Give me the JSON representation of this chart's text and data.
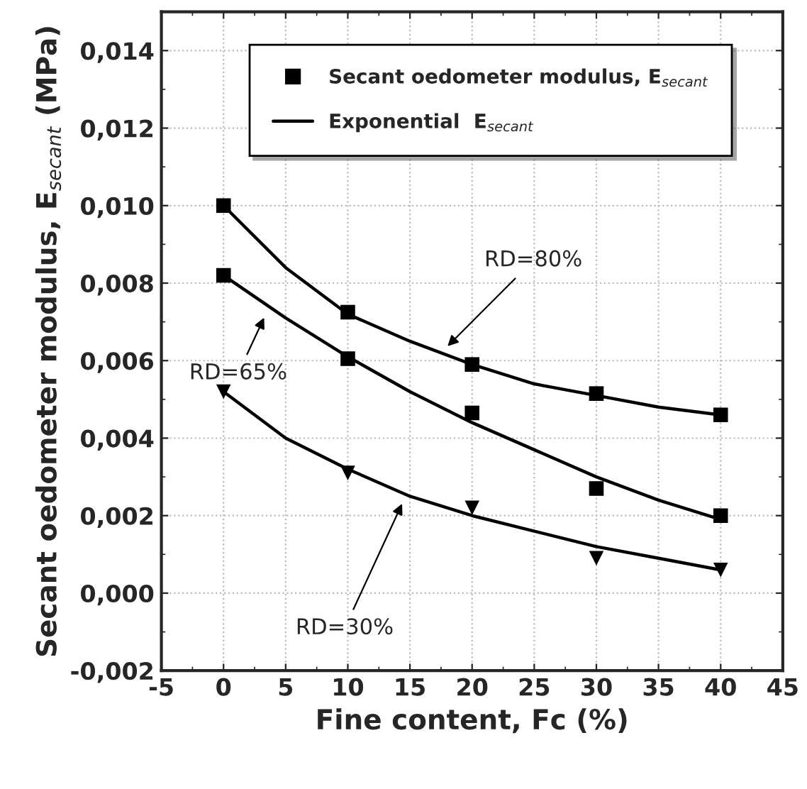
{
  "chart_data": {
    "type": "scatter",
    "xlabel": "Fine content, Fc (%)",
    "ylabel": "Secant oedometer modulus, E$_{secant}$ (MPa)",
    "x": [
      0,
      10,
      20,
      30,
      40
    ],
    "series": [
      {
        "name": "Secant oedometer modulus, E$_{secant}$",
        "marker": "square",
        "color": "#000000",
        "values": [
          0.01,
          0.00725,
          0.0059,
          0.00515,
          0.0046
        ]
      },
      {
        "marker": "square",
        "color": "#000000",
        "values": [
          0.0082,
          0.00605,
          0.00465,
          0.0027,
          0.002
        ]
      },
      {
        "marker": "triangle",
        "color": "#000000",
        "values": [
          0.0052,
          0.0031,
          0.0022,
          0.0009,
          0.0006
        ]
      },
      {
        "name": "Exponential  E$_{secant}$",
        "type": "line",
        "marker": "none",
        "line_style": "solid",
        "color": "#000000",
        "x": [
          0,
          5,
          10,
          15,
          20,
          25,
          30,
          35,
          40
        ],
        "values": [
          0.01,
          0.0084,
          0.0072,
          0.0065,
          0.0059,
          0.0054,
          0.0051,
          0.0048,
          0.0046
        ]
      },
      {
        "type": "line",
        "marker": "none",
        "line_style": "solid",
        "color": "#000000",
        "x": [
          0,
          5,
          10,
          15,
          20,
          25,
          30,
          35,
          40
        ],
        "values": [
          0.0082,
          0.0071,
          0.0061,
          0.0052,
          0.0044,
          0.0037,
          0.003,
          0.0024,
          0.0019
        ]
      },
      {
        "type": "line",
        "marker": "none",
        "line_style": "solid",
        "color": "#000000",
        "x": [
          0,
          5,
          10,
          15,
          20,
          25,
          30,
          35,
          40
        ],
        "values": [
          0.0052,
          0.004,
          0.0032,
          0.0025,
          0.002,
          0.0016,
          0.0012,
          0.0009,
          0.0006
        ]
      }
    ],
    "annotations": [
      {
        "text": "RD=80%",
        "x": 17.8,
        "y": 0.0063
      },
      {
        "text": "RD=65%",
        "x": 3.4,
        "y": 0.0072
      },
      {
        "text": "RD=30%",
        "x": 14.5,
        "y": 0.0024
      }
    ],
    "xlim": [
      -5,
      45
    ],
    "xticks": [
      -5,
      0,
      5,
      10,
      15,
      20,
      25,
      30,
      35,
      40,
      45
    ],
    "ylim": [
      -0.002,
      0.015
    ],
    "yticks": [
      {
        "value": -0.002,
        "label": "-0,002"
      },
      {
        "value": 0,
        "label": "0,000"
      },
      {
        "value": 0.002,
        "label": "0,002"
      },
      {
        "value": 0.004,
        "label": "0,004"
      },
      {
        "value": 0.006,
        "label": "0,006"
      },
      {
        "value": 0.008,
        "label": "0,008"
      },
      {
        "value": 0.01,
        "label": "0,010"
      },
      {
        "value": 0.012,
        "label": "0,012"
      },
      {
        "value": 0.014,
        "label": "0,014"
      }
    ],
    "grid": true,
    "legend": "top"
  }
}
